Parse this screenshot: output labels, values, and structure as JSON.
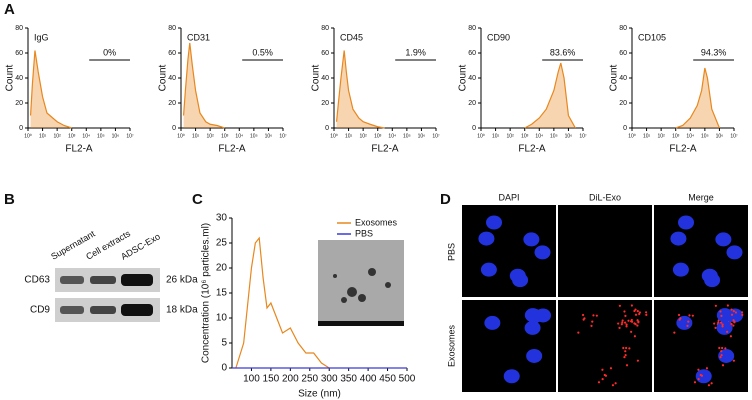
{
  "panel_labels": [
    "A",
    "B",
    "C",
    "D"
  ],
  "chart_data": [
    {
      "type": "area",
      "label": "IgG",
      "annotation": "0%",
      "xlabel": "FL2-A",
      "ylabel": "Count",
      "xlog": true,
      "color": "#e8871e",
      "xlim": [
        1,
        10000000
      ],
      "xticks": [
        {
          "value": 1,
          "label": "10⁰"
        },
        {
          "value": 10,
          "label": "10¹"
        },
        {
          "value": 100,
          "label": "10²"
        },
        {
          "value": 1000,
          "label": "10³"
        },
        {
          "value": 10000,
          "label": "10⁴"
        },
        {
          "value": 100000,
          "label": "10⁵"
        },
        {
          "value": 1000000,
          "label": "10⁶"
        },
        {
          "value": 10000000,
          "label": "10⁷"
        }
      ],
      "ylim": [
        0,
        80
      ],
      "yticks": [
        0,
        20,
        40,
        60,
        80
      ],
      "x": [
        1.5,
        2,
        3,
        5,
        10,
        20,
        50,
        100,
        300,
        1000
      ],
      "values": [
        10,
        35,
        62,
        45,
        25,
        12,
        8,
        5,
        2,
        0
      ]
    },
    {
      "type": "area",
      "label": "CD31",
      "annotation": "0.5%",
      "xlabel": "FL2-A",
      "ylabel": "Count",
      "xlog": true,
      "color": "#e8871e",
      "xlim": [
        1,
        10000000
      ],
      "xticks": [
        {
          "value": 1,
          "label": "10⁰"
        },
        {
          "value": 10,
          "label": "10¹"
        },
        {
          "value": 100,
          "label": "10²"
        },
        {
          "value": 1000,
          "label": "10³"
        },
        {
          "value": 10000,
          "label": "10⁴"
        },
        {
          "value": 100000,
          "label": "10⁵"
        },
        {
          "value": 1000000,
          "label": "10⁶"
        },
        {
          "value": 10000000,
          "label": "10⁷"
        }
      ],
      "ylim": [
        0,
        80
      ],
      "yticks": [
        0,
        20,
        40,
        60,
        80
      ],
      "x": [
        1.5,
        2,
        3,
        4,
        6,
        10,
        20,
        50,
        100,
        300,
        1000
      ],
      "values": [
        10,
        30,
        55,
        68,
        50,
        30,
        12,
        5,
        3,
        2,
        0
      ]
    },
    {
      "type": "area",
      "label": "CD45",
      "annotation": "1.9%",
      "xlabel": "FL2-A",
      "ylabel": "Count",
      "xlog": true,
      "color": "#e8871e",
      "xlim": [
        1,
        10000000
      ],
      "xticks": [
        {
          "value": 1,
          "label": "10⁰"
        },
        {
          "value": 10,
          "label": "10¹"
        },
        {
          "value": 100,
          "label": "10²"
        },
        {
          "value": 1000,
          "label": "10³"
        },
        {
          "value": 10000,
          "label": "10⁴"
        },
        {
          "value": 100000,
          "label": "10⁵"
        },
        {
          "value": 1000000,
          "label": "10⁶"
        },
        {
          "value": 10000000,
          "label": "10⁷"
        }
      ],
      "ylim": [
        0,
        80
      ],
      "yticks": [
        0,
        20,
        40,
        60,
        80
      ],
      "x": [
        1.5,
        2,
        3,
        5,
        7,
        10,
        20,
        50,
        100,
        300,
        1000,
        3000
      ],
      "values": [
        5,
        20,
        40,
        62,
        45,
        30,
        15,
        8,
        5,
        3,
        1,
        0
      ]
    },
    {
      "type": "area",
      "label": "CD90",
      "annotation": "83.6%",
      "xlabel": "FL2-A",
      "ylabel": "Count",
      "xlog": true,
      "color": "#e8871e",
      "xlim": [
        1,
        10000000
      ],
      "xticks": [
        {
          "value": 1,
          "label": "10⁰"
        },
        {
          "value": 10,
          "label": "10¹"
        },
        {
          "value": 100,
          "label": "10²"
        },
        {
          "value": 1000,
          "label": "10³"
        },
        {
          "value": 10000,
          "label": "10⁴"
        },
        {
          "value": 100000,
          "label": "10⁵"
        },
        {
          "value": 1000000,
          "label": "10⁶"
        },
        {
          "value": 10000000,
          "label": "10⁷"
        }
      ],
      "ylim": [
        0,
        80
      ],
      "yticks": [
        0,
        20,
        40,
        60,
        80
      ],
      "x": [
        1000,
        3000,
        10000,
        30000,
        100000,
        200000,
        300000,
        500000,
        1000000,
        3000000
      ],
      "values": [
        0,
        3,
        8,
        15,
        30,
        45,
        52,
        40,
        10,
        0
      ]
    },
    {
      "type": "area",
      "label": "CD105",
      "annotation": "94.3%",
      "xlabel": "FL2-A",
      "ylabel": "Count",
      "xlog": true,
      "color": "#e8871e",
      "xlim": [
        1,
        10000000
      ],
      "xticks": [
        {
          "value": 1,
          "label": "10⁰"
        },
        {
          "value": 10,
          "label": "10¹"
        },
        {
          "value": 100,
          "label": "10²"
        },
        {
          "value": 1000,
          "label": "10³"
        },
        {
          "value": 10000,
          "label": "10⁴"
        },
        {
          "value": 100000,
          "label": "10⁵"
        },
        {
          "value": 1000000,
          "label": "10⁶"
        },
        {
          "value": 10000000,
          "label": "10⁷"
        }
      ],
      "ylim": [
        0,
        80
      ],
      "yticks": [
        0,
        20,
        40,
        60,
        80
      ],
      "x": [
        1000,
        3000,
        10000,
        30000,
        60000,
        100000,
        150000,
        300000,
        1000000
      ],
      "values": [
        0,
        2,
        8,
        18,
        30,
        48,
        40,
        15,
        0
      ]
    },
    {
      "type": "line",
      "xlabel": "Size (nm)",
      "ylabel": "Concentration (10⁶ particles.ml)",
      "legend": "upper right",
      "xlim": [
        50,
        500
      ],
      "xticks": [
        100,
        150,
        200,
        250,
        300,
        350,
        400,
        450,
        500
      ],
      "ylim": [
        0,
        30
      ],
      "yticks": [
        0,
        5,
        10,
        15,
        20,
        25,
        30
      ],
      "series": [
        {
          "name": "Exosomes",
          "color": "#e8871e",
          "x": [
            60,
            80,
            100,
            110,
            120,
            130,
            140,
            150,
            160,
            180,
            200,
            220,
            240,
            260,
            280,
            300
          ],
          "values": [
            0,
            5,
            20,
            25,
            26,
            18,
            12,
            13,
            11,
            7,
            8,
            5,
            3,
            3,
            1,
            0
          ]
        },
        {
          "name": "PBS",
          "color": "#3b3bd9",
          "x": [
            50,
            500
          ],
          "values": [
            0,
            0
          ]
        }
      ]
    }
  ],
  "western_blot": {
    "lanes": [
      "Supernatant",
      "Cell extracts",
      "ADSC-Exo"
    ],
    "rows": [
      {
        "protein": "CD63",
        "size": "26 kDa"
      },
      {
        "protein": "CD9",
        "size": "18 kDa"
      }
    ]
  },
  "microscopy": {
    "columns": [
      "DAPI",
      "DiL-Exo",
      "Merge"
    ],
    "rows": [
      "PBS",
      "Exosomes"
    ]
  }
}
